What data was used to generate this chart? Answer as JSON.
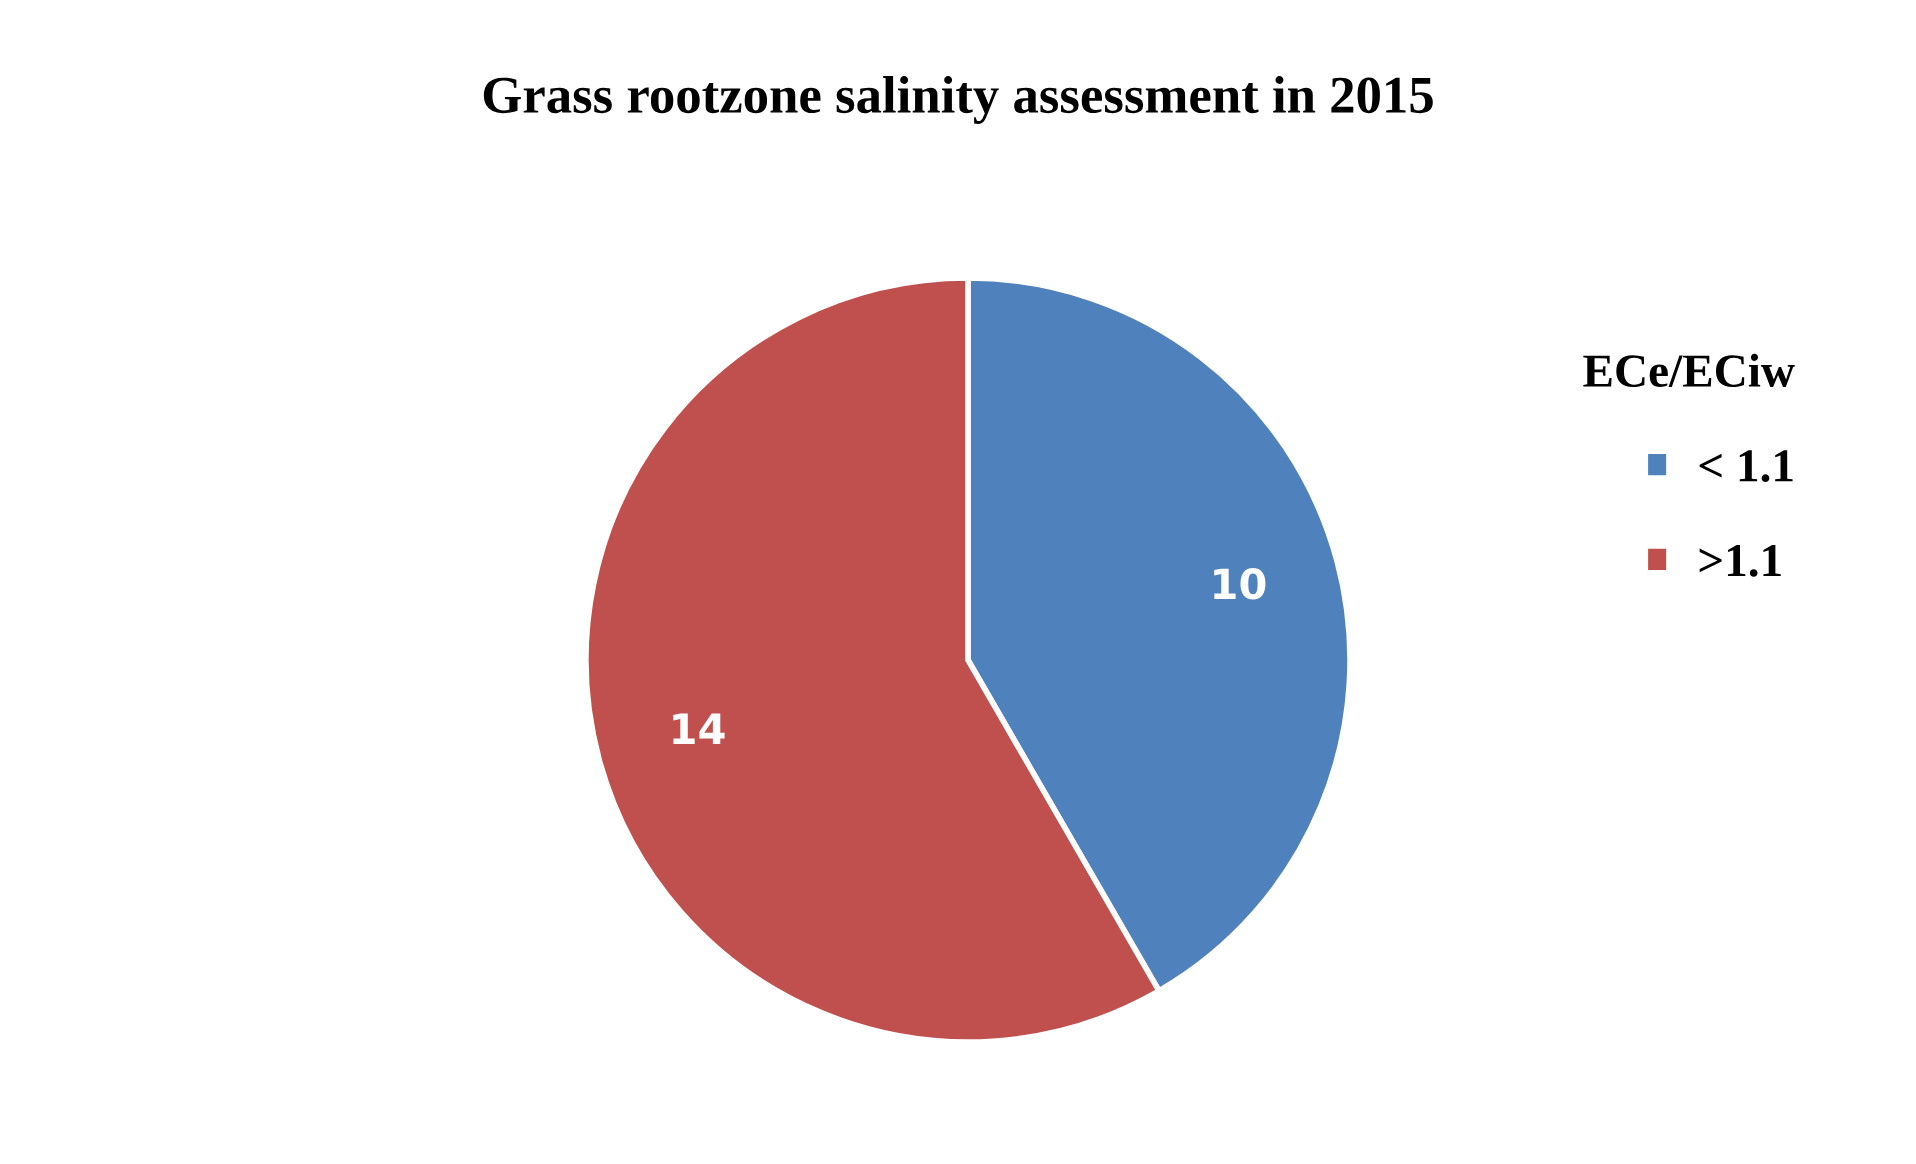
{
  "chart_data": {
    "type": "pie",
    "title": "Grass rootzone salinity assessment in 2015",
    "legend_title": "ECe/ECiw",
    "categories": [
      "< 1.1",
      ">1.1"
    ],
    "values": [
      10,
      14
    ],
    "colors": [
      "#4f81bd",
      "#c0504d"
    ],
    "data_labels": true,
    "legend": "right"
  }
}
